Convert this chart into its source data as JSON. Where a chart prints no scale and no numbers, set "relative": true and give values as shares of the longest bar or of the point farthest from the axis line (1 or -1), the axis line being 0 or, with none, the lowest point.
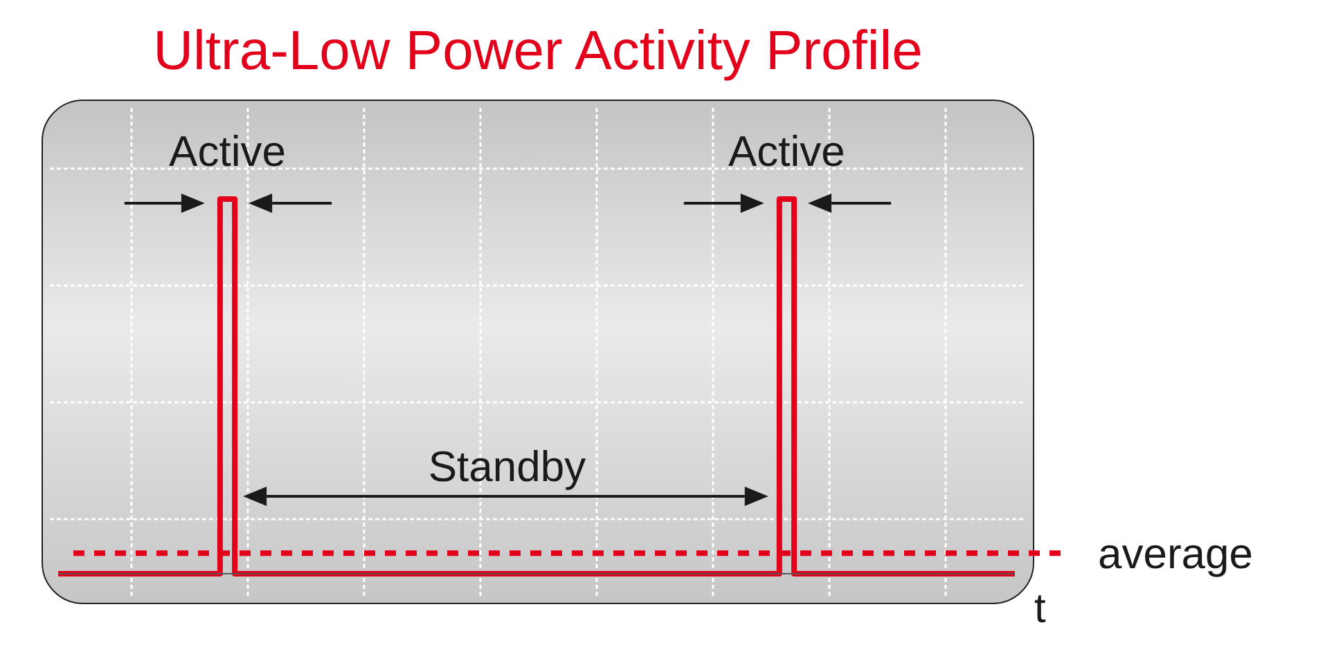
{
  "chart_data": {
    "type": "step",
    "title": "Ultra-Low Power Activity Profile",
    "xlabel": "t",
    "categories": [
      null,
      null,
      null,
      null,
      null,
      null,
      null,
      null,
      null,
      null,
      null,
      null,
      null,
      null,
      null,
      null,
      null,
      null,
      null,
      null,
      null,
      null,
      null,
      null,
      null,
      null,
      null,
      null,
      null,
      null,
      null,
      null,
      null,
      null,
      null,
      null,
      null,
      null,
      null,
      null,
      null,
      null,
      null,
      null,
      null,
      null,
      null,
      null,
      null,
      null,
      null,
      null,
      null,
      null,
      null,
      null,
      null,
      null,
      null,
      null,
      null,
      null,
      null,
      null,
      null,
      null
    ],
    "values": [
      0,
      0,
      0,
      0,
      0,
      0,
      0,
      0,
      0,
      0,
      0,
      1,
      0,
      0,
      0,
      0,
      0,
      0,
      0,
      0,
      0,
      0,
      0,
      0,
      0,
      0,
      0,
      0,
      0,
      0,
      0,
      0,
      0,
      0,
      0,
      0,
      0,
      0,
      0,
      0,
      0,
      0,
      0,
      0,
      0,
      0,
      0,
      0,
      0,
      1,
      0,
      0,
      0,
      0,
      0,
      0,
      0,
      0,
      0,
      0,
      0,
      0,
      0,
      0,
      0,
      0
    ],
    "color": "#e2001a",
    "relative": true,
    "ref_lines": [
      {
        "axis": "y",
        "value": 0.055,
        "label": "average",
        "color": "#e2001a",
        "line_style": "dashed"
      }
    ],
    "annotations": [
      "Active",
      "Active",
      "Standby"
    ],
    "grid": true
  }
}
